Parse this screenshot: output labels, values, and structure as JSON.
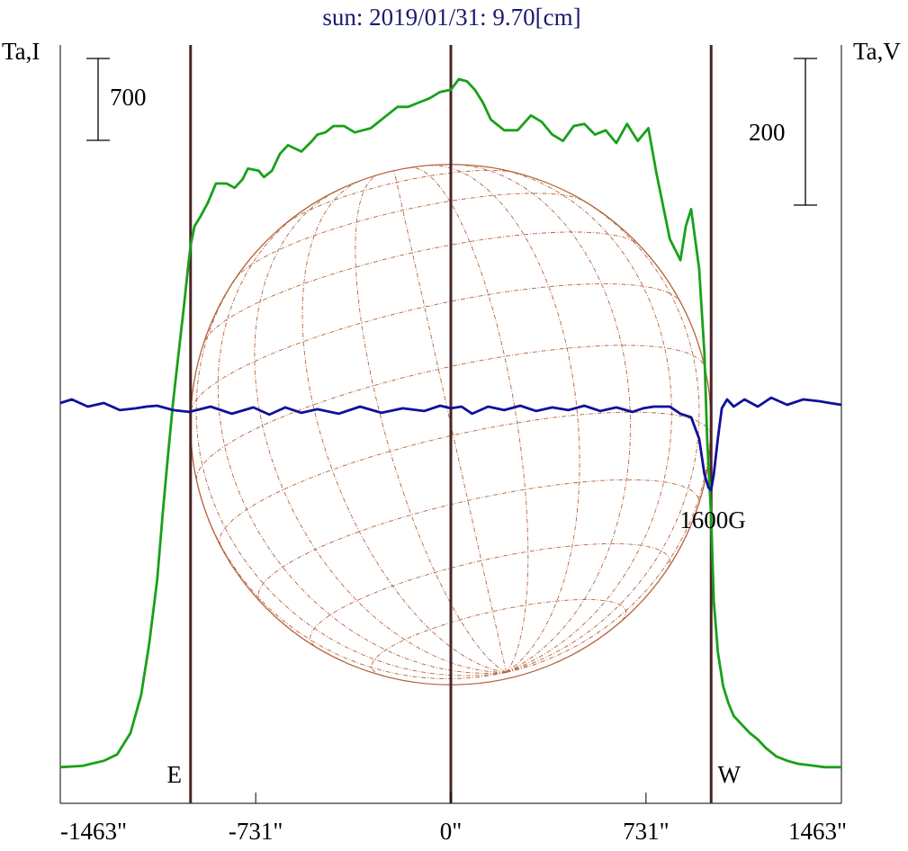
{
  "chart_data": {
    "type": "line",
    "title": "sun: 2019/01/31: 9.70[cm]",
    "y_left_label": "Ta,I",
    "y_right_label": "Ta,V",
    "left_scale_bar": "700",
    "right_scale_bar": "200",
    "x_ticks": [
      "-1463\"",
      "-731\"",
      "0\"",
      "731\"",
      "1463\""
    ],
    "x_tick_values": [
      -1463,
      -731,
      0,
      731,
      1463
    ],
    "xlim": [
      -1463,
      1463
    ],
    "markers": [
      {
        "label": "E",
        "x": -975
      },
      {
        "label": "",
        "x": 0
      },
      {
        "label": "W",
        "x": 975
      }
    ],
    "annotation": {
      "text": "1600G",
      "x": 975
    },
    "colors": {
      "title": "#1a1a6e",
      "intensity": "#1aa01a",
      "polarization": "#10109a",
      "markers": "#4a2424",
      "disk": "#b4643c",
      "text": "#000000"
    },
    "series": [
      {
        "name": "I",
        "unit": "Ta",
        "x": [
          -1463,
          -1380,
          -1300,
          -1250,
          -1200,
          -1160,
          -1130,
          -1100,
          -1080,
          -1060,
          -1040,
          -1020,
          -1000,
          -985,
          -975,
          -960,
          -940,
          -910,
          -880,
          -840,
          -810,
          -780,
          -760,
          -720,
          -700,
          -670,
          -640,
          -610,
          -560,
          -520,
          -500,
          -470,
          -440,
          -400,
          -360,
          -300,
          -240,
          -200,
          -160,
          -120,
          -80,
          -40,
          0,
          30,
          60,
          90,
          120,
          150,
          200,
          250,
          300,
          340,
          380,
          420,
          460,
          500,
          540,
          580,
          620,
          660,
          700,
          740,
          770,
          820,
          860,
          880,
          900,
          930,
          950,
          960,
          975,
          985,
          1000,
          1020,
          1040,
          1060,
          1090,
          1120,
          1150,
          1180,
          1220,
          1260,
          1300,
          1350,
          1400,
          1463
        ],
        "y": [
          30,
          33,
          45,
          60,
          110,
          200,
          320,
          470,
          620,
          760,
          890,
          1000,
          1110,
          1200,
          1255,
          1300,
          1320,
          1355,
          1400,
          1400,
          1390,
          1410,
          1435,
          1430,
          1415,
          1430,
          1470,
          1490,
          1475,
          1500,
          1515,
          1520,
          1535,
          1535,
          1520,
          1530,
          1560,
          1580,
          1580,
          1590,
          1600,
          1615,
          1620,
          1645,
          1640,
          1620,
          1590,
          1550,
          1525,
          1525,
          1560,
          1545,
          1515,
          1500,
          1535,
          1540,
          1515,
          1525,
          1495,
          1540,
          1500,
          1530,
          1425,
          1270,
          1220,
          1300,
          1340,
          1200,
          1000,
          800,
          620,
          420,
          300,
          220,
          180,
          150,
          130,
          110,
          95,
          75,
          55,
          45,
          38,
          34,
          30,
          30
        ]
      },
      {
        "name": "V",
        "unit": "Ta",
        "x": [
          -1463,
          -1420,
          -1360,
          -1300,
          -1240,
          -1180,
          -1140,
          -1100,
          -1040,
          -980,
          -900,
          -820,
          -740,
          -680,
          -620,
          -560,
          -500,
          -420,
          -340,
          -260,
          -180,
          -100,
          -40,
          0,
          40,
          80,
          140,
          200,
          260,
          320,
          380,
          440,
          500,
          560,
          620,
          680,
          720,
          760,
          820,
          860,
          900,
          930,
          950,
          965,
          975,
          985,
          1000,
          1015,
          1035,
          1060,
          1100,
          1150,
          1200,
          1260,
          1320,
          1380,
          1420,
          1463
        ],
        "y": [
          0,
          4,
          -4,
          0,
          -8,
          -6,
          -4,
          -3,
          -8,
          -10,
          -4,
          -12,
          -5,
          -13,
          -5,
          -11,
          -7,
          -12,
          -4,
          -11,
          -6,
          -9,
          -3,
          -6,
          -4,
          -12,
          -4,
          -8,
          -3,
          -9,
          -5,
          -8,
          -3,
          -9,
          -5,
          -10,
          -6,
          -4,
          -4,
          -12,
          -16,
          -40,
          -80,
          -95,
          -98,
          -80,
          -40,
          -6,
          4,
          -4,
          4,
          -4,
          6,
          -2,
          4,
          2,
          0,
          -2
        ]
      }
    ],
    "disk": {
      "radius": 975
    }
  }
}
